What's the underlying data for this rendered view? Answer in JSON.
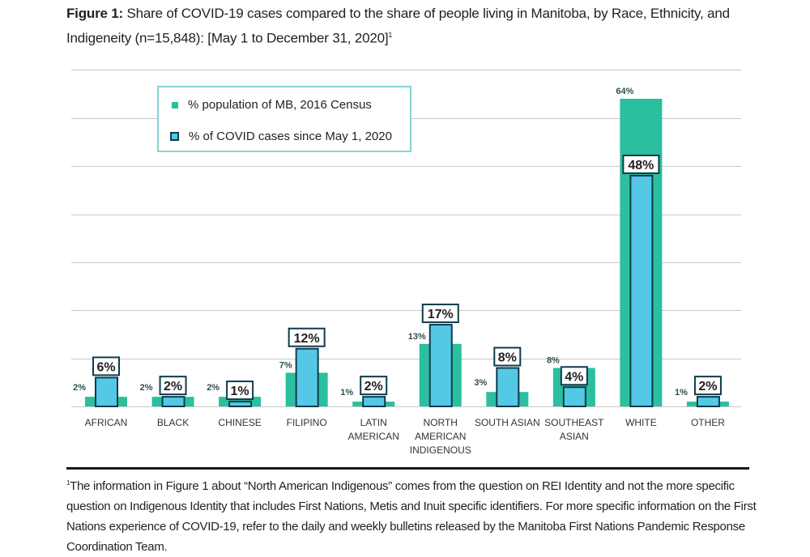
{
  "title": {
    "bold": "Figure 1:",
    "text": " Share of COVID-19 cases compared to the share of people living in Manitoba, by Race, Ethnicity, and Indigeneity (n=15,848): [May 1 to December 31, 2020]",
    "footnote_mark": "1"
  },
  "legend": {
    "items": [
      {
        "label": "% population of MB, 2016 Census",
        "color": "#2bbf9f"
      },
      {
        "label": "% of COVID cases since May 1, 2020",
        "color": "#55c8e6"
      }
    ]
  },
  "footnote": {
    "mark": "1",
    "text": "The information in Figure 1 about “North American Indigenous” comes from the question on REI Identity and not the more specific question on Indigenous Identity that includes First Nations, Metis and Inuit specific identifiers. For more specific information on the First Nations experience of COVID-19, refer to the daily and weekly bulletins released by the Manitoba First Nations Pandemic Response Coordination Team."
  },
  "chart_data": {
    "type": "bar",
    "title": "Share of COVID-19 cases compared to the share of people living in Manitoba, by Race, Ethnicity, and Indigeneity (n=15,848): [May 1 to December 31, 2020]",
    "xlabel": "",
    "ylabel": "",
    "ylim": [
      0,
      70
    ],
    "grid": true,
    "gridlines": [
      10,
      20,
      30,
      40,
      50,
      60,
      70
    ],
    "legend_position": "top-left",
    "categories": [
      [
        "AFRICAN"
      ],
      [
        "BLACK"
      ],
      [
        "CHINESE"
      ],
      [
        "FILIPINO"
      ],
      [
        "LATIN",
        "AMERICAN"
      ],
      [
        "NORTH",
        "AMERICAN",
        "INDIGENOUS"
      ],
      [
        "SOUTH ASIAN"
      ],
      [
        "SOUTHEAST",
        "ASIAN"
      ],
      [
        "WHITE"
      ],
      [
        "OTHER"
      ]
    ],
    "series": [
      {
        "name": "% population of MB, 2016 Census",
        "color": "#2bbf9f",
        "values": [
          2,
          2,
          2,
          7,
          1,
          13,
          3,
          8,
          64,
          1
        ],
        "labels": [
          "2%",
          "2%",
          "2%",
          "7%",
          "1%",
          "13%",
          "3%",
          "8%",
          "64%",
          "1%"
        ]
      },
      {
        "name": "% of COVID cases since May 1, 2020",
        "color": "#55c8e6",
        "outline": "#0e3c4c",
        "values": [
          6,
          2,
          1,
          12,
          2,
          17,
          8,
          4,
          48,
          2
        ],
        "labels": [
          "6%",
          "2%",
          "1%",
          "12%",
          "2%",
          "17%",
          "8%",
          "4%",
          "48%",
          "2%"
        ]
      }
    ]
  }
}
